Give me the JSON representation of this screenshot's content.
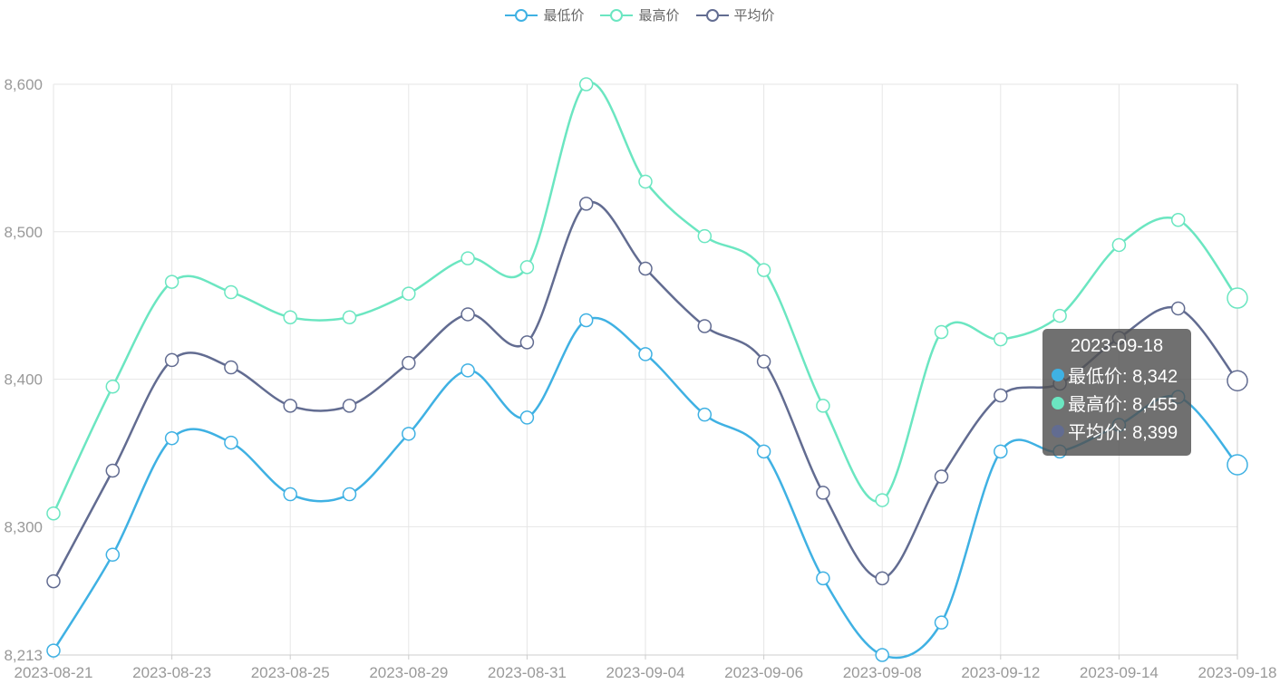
{
  "chart_data": {
    "type": "line",
    "smooth": true,
    "x": [
      "2023-08-21",
      "2023-08-22",
      "2023-08-23",
      "2023-08-24",
      "2023-08-25",
      "2023-08-28",
      "2023-08-29",
      "2023-08-30",
      "2023-08-31",
      "2023-09-01",
      "2023-09-04",
      "2023-09-05",
      "2023-09-06",
      "2023-09-07",
      "2023-09-08",
      "2023-09-11",
      "2023-09-12",
      "2023-09-13",
      "2023-09-14",
      "2023-09-15",
      "2023-09-18"
    ],
    "x_tick_labels": [
      "2023-08-21",
      "2023-08-23",
      "2023-08-25",
      "2023-08-29",
      "2023-08-31",
      "2023-09-04",
      "2023-09-06",
      "2023-09-08",
      "2023-09-12",
      "2023-09-14",
      "2023-09-18"
    ],
    "y_tick_labels": [
      "8,600",
      "8,500",
      "8,400",
      "8,300",
      "8,213"
    ],
    "ylim": [
      8213,
      8600
    ],
    "grid": true,
    "legend_position": "top-center",
    "series": [
      {
        "name": "最低价",
        "color": "#3fb1e3",
        "values": [
          8216,
          8281,
          8360,
          8357,
          8322,
          8322,
          8363,
          8406,
          8374,
          8440,
          8417,
          8376,
          8351,
          8265,
          8213,
          8235,
          8351,
          8351,
          8369,
          8388,
          8342
        ]
      },
      {
        "name": "最高价",
        "color": "#6be6c1",
        "values": [
          8309,
          8395,
          8466,
          8459,
          8442,
          8442,
          8458,
          8482,
          8476,
          8600,
          8534,
          8497,
          8474,
          8382,
          8318,
          8432,
          8427,
          8443,
          8491,
          8508,
          8455
        ]
      },
      {
        "name": "平均价",
        "color": "#626c91",
        "values": [
          8263,
          8338,
          8413,
          8408,
          8382,
          8382,
          8411,
          8444,
          8425,
          8519,
          8475,
          8436,
          8412,
          8323,
          8265,
          8334,
          8389,
          8397,
          8428,
          8448,
          8399
        ]
      }
    ],
    "tooltip": {
      "title": "2023-09-18",
      "rows": [
        {
          "label": "最低价: 8,342",
          "color": "#3fb1e3"
        },
        {
          "label": "最高价: 8,455",
          "color": "#6be6c1"
        },
        {
          "label": "平均价: 8,399",
          "color": "#626c91"
        }
      ]
    }
  }
}
